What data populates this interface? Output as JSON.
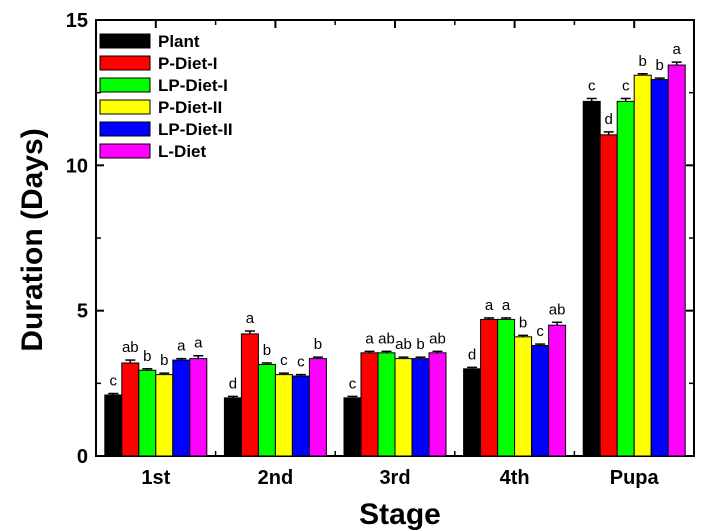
{
  "chart_data": {
    "type": "bar",
    "title": "",
    "xlabel": "Stage",
    "ylabel": "Duration (Days)",
    "ylim": [
      0,
      15
    ],
    "yticks": [
      0,
      5,
      10,
      15
    ],
    "grid": false,
    "legend_position": "top-left",
    "categories": [
      "1st",
      "2nd",
      "3rd",
      "4th",
      "Pupa"
    ],
    "series": [
      {
        "name": "Plant",
        "color": "#000000",
        "values": [
          2.1,
          2.0,
          2.0,
          3.0,
          12.2
        ],
        "errors": [
          0.05,
          0.05,
          0.05,
          0.05,
          0.1
        ],
        "labels": [
          "c",
          "d",
          "c",
          "d",
          "c"
        ]
      },
      {
        "name": "P-Diet-I",
        "color": "#ff0000",
        "values": [
          3.2,
          4.2,
          3.55,
          4.7,
          11.05
        ],
        "errors": [
          0.1,
          0.1,
          0.05,
          0.05,
          0.1
        ],
        "labels": [
          "ab",
          "a",
          "a",
          "a",
          "d"
        ]
      },
      {
        "name": "LP-Diet-I",
        "color": "#00ff00",
        "values": [
          2.95,
          3.15,
          3.55,
          4.7,
          12.2
        ],
        "errors": [
          0.05,
          0.05,
          0.05,
          0.05,
          0.1
        ],
        "labels": [
          "b",
          "b",
          "ab",
          "a",
          "c"
        ]
      },
      {
        "name": "P-Diet-II",
        "color": "#ffff00",
        "values": [
          2.8,
          2.8,
          3.35,
          4.1,
          13.1
        ],
        "errors": [
          0.05,
          0.05,
          0.05,
          0.05,
          0.05
        ],
        "labels": [
          "b",
          "c",
          "ab",
          "b",
          "b"
        ]
      },
      {
        "name": "LP-Diet-II",
        "color": "#0000ff",
        "values": [
          3.3,
          2.75,
          3.35,
          3.8,
          12.95
        ],
        "errors": [
          0.05,
          0.05,
          0.05,
          0.05,
          0.05
        ],
        "labels": [
          "a",
          "c",
          "b",
          "c",
          "b"
        ]
      },
      {
        "name": "L-Diet",
        "color": "#ff00ff",
        "values": [
          3.35,
          3.35,
          3.55,
          4.5,
          13.45
        ],
        "errors": [
          0.1,
          0.05,
          0.05,
          0.1,
          0.1
        ],
        "labels": [
          "a",
          "b",
          "ab",
          "ab",
          "a"
        ]
      }
    ]
  }
}
